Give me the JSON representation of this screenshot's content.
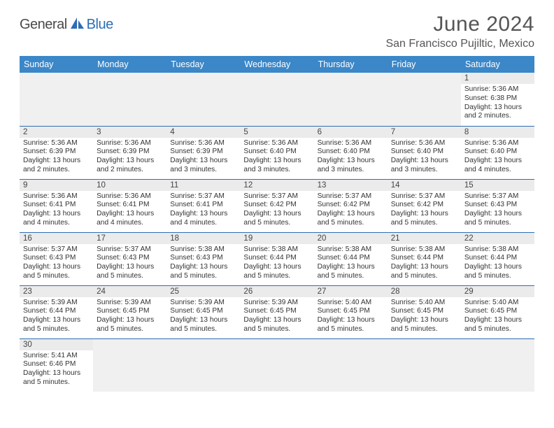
{
  "logo": {
    "general": "General",
    "blue": "Blue"
  },
  "title": "June 2024",
  "location": "San Francisco Pujiltic, Mexico",
  "headerColor": "#3b87c8",
  "weekdays": [
    "Sunday",
    "Monday",
    "Tuesday",
    "Wednesday",
    "Thursday",
    "Friday",
    "Saturday"
  ],
  "weeks": [
    [
      null,
      null,
      null,
      null,
      null,
      null,
      {
        "d": "1",
        "sr": "Sunrise: 5:36 AM",
        "ss": "Sunset: 6:38 PM",
        "dl": "Daylight: 13 hours and 2 minutes."
      }
    ],
    [
      {
        "d": "2",
        "sr": "Sunrise: 5:36 AM",
        "ss": "Sunset: 6:39 PM",
        "dl": "Daylight: 13 hours and 2 minutes."
      },
      {
        "d": "3",
        "sr": "Sunrise: 5:36 AM",
        "ss": "Sunset: 6:39 PM",
        "dl": "Daylight: 13 hours and 2 minutes."
      },
      {
        "d": "4",
        "sr": "Sunrise: 5:36 AM",
        "ss": "Sunset: 6:39 PM",
        "dl": "Daylight: 13 hours and 3 minutes."
      },
      {
        "d": "5",
        "sr": "Sunrise: 5:36 AM",
        "ss": "Sunset: 6:40 PM",
        "dl": "Daylight: 13 hours and 3 minutes."
      },
      {
        "d": "6",
        "sr": "Sunrise: 5:36 AM",
        "ss": "Sunset: 6:40 PM",
        "dl": "Daylight: 13 hours and 3 minutes."
      },
      {
        "d": "7",
        "sr": "Sunrise: 5:36 AM",
        "ss": "Sunset: 6:40 PM",
        "dl": "Daylight: 13 hours and 3 minutes."
      },
      {
        "d": "8",
        "sr": "Sunrise: 5:36 AM",
        "ss": "Sunset: 6:40 PM",
        "dl": "Daylight: 13 hours and 4 minutes."
      }
    ],
    [
      {
        "d": "9",
        "sr": "Sunrise: 5:36 AM",
        "ss": "Sunset: 6:41 PM",
        "dl": "Daylight: 13 hours and 4 minutes."
      },
      {
        "d": "10",
        "sr": "Sunrise: 5:36 AM",
        "ss": "Sunset: 6:41 PM",
        "dl": "Daylight: 13 hours and 4 minutes."
      },
      {
        "d": "11",
        "sr": "Sunrise: 5:37 AM",
        "ss": "Sunset: 6:41 PM",
        "dl": "Daylight: 13 hours and 4 minutes."
      },
      {
        "d": "12",
        "sr": "Sunrise: 5:37 AM",
        "ss": "Sunset: 6:42 PM",
        "dl": "Daylight: 13 hours and 5 minutes."
      },
      {
        "d": "13",
        "sr": "Sunrise: 5:37 AM",
        "ss": "Sunset: 6:42 PM",
        "dl": "Daylight: 13 hours and 5 minutes."
      },
      {
        "d": "14",
        "sr": "Sunrise: 5:37 AM",
        "ss": "Sunset: 6:42 PM",
        "dl": "Daylight: 13 hours and 5 minutes."
      },
      {
        "d": "15",
        "sr": "Sunrise: 5:37 AM",
        "ss": "Sunset: 6:43 PM",
        "dl": "Daylight: 13 hours and 5 minutes."
      }
    ],
    [
      {
        "d": "16",
        "sr": "Sunrise: 5:37 AM",
        "ss": "Sunset: 6:43 PM",
        "dl": "Daylight: 13 hours and 5 minutes."
      },
      {
        "d": "17",
        "sr": "Sunrise: 5:37 AM",
        "ss": "Sunset: 6:43 PM",
        "dl": "Daylight: 13 hours and 5 minutes."
      },
      {
        "d": "18",
        "sr": "Sunrise: 5:38 AM",
        "ss": "Sunset: 6:43 PM",
        "dl": "Daylight: 13 hours and 5 minutes."
      },
      {
        "d": "19",
        "sr": "Sunrise: 5:38 AM",
        "ss": "Sunset: 6:44 PM",
        "dl": "Daylight: 13 hours and 5 minutes."
      },
      {
        "d": "20",
        "sr": "Sunrise: 5:38 AM",
        "ss": "Sunset: 6:44 PM",
        "dl": "Daylight: 13 hours and 5 minutes."
      },
      {
        "d": "21",
        "sr": "Sunrise: 5:38 AM",
        "ss": "Sunset: 6:44 PM",
        "dl": "Daylight: 13 hours and 5 minutes."
      },
      {
        "d": "22",
        "sr": "Sunrise: 5:38 AM",
        "ss": "Sunset: 6:44 PM",
        "dl": "Daylight: 13 hours and 5 minutes."
      }
    ],
    [
      {
        "d": "23",
        "sr": "Sunrise: 5:39 AM",
        "ss": "Sunset: 6:44 PM",
        "dl": "Daylight: 13 hours and 5 minutes."
      },
      {
        "d": "24",
        "sr": "Sunrise: 5:39 AM",
        "ss": "Sunset: 6:45 PM",
        "dl": "Daylight: 13 hours and 5 minutes."
      },
      {
        "d": "25",
        "sr": "Sunrise: 5:39 AM",
        "ss": "Sunset: 6:45 PM",
        "dl": "Daylight: 13 hours and 5 minutes."
      },
      {
        "d": "26",
        "sr": "Sunrise: 5:39 AM",
        "ss": "Sunset: 6:45 PM",
        "dl": "Daylight: 13 hours and 5 minutes."
      },
      {
        "d": "27",
        "sr": "Sunrise: 5:40 AM",
        "ss": "Sunset: 6:45 PM",
        "dl": "Daylight: 13 hours and 5 minutes."
      },
      {
        "d": "28",
        "sr": "Sunrise: 5:40 AM",
        "ss": "Sunset: 6:45 PM",
        "dl": "Daylight: 13 hours and 5 minutes."
      },
      {
        "d": "29",
        "sr": "Sunrise: 5:40 AM",
        "ss": "Sunset: 6:45 PM",
        "dl": "Daylight: 13 hours and 5 minutes."
      }
    ],
    [
      {
        "d": "30",
        "sr": "Sunrise: 5:41 AM",
        "ss": "Sunset: 6:46 PM",
        "dl": "Daylight: 13 hours and 5 minutes."
      },
      null,
      null,
      null,
      null,
      null,
      null
    ]
  ]
}
